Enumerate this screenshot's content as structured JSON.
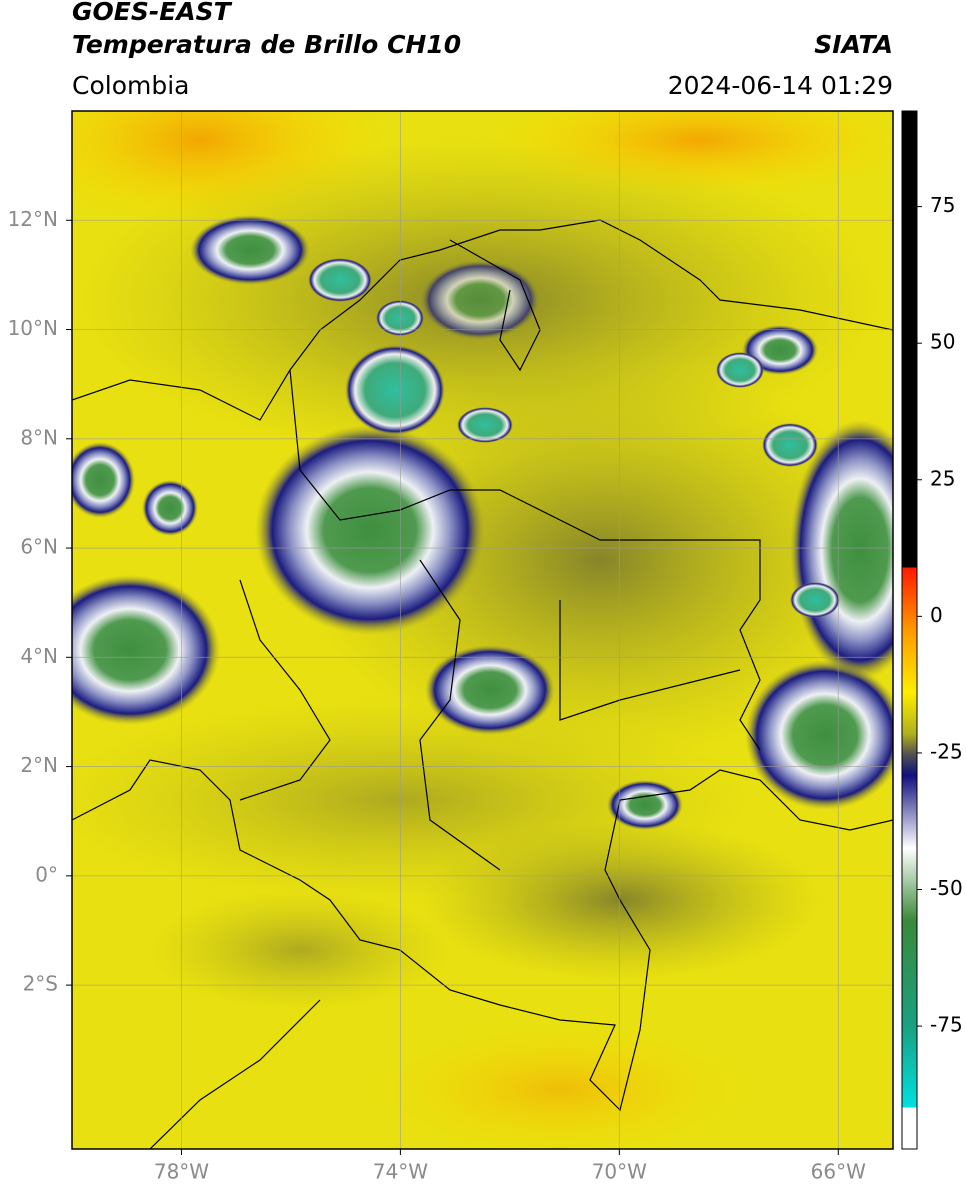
{
  "header": {
    "title": "GOES-EAST",
    "subtitle": "Temperatura de Brillo CH10",
    "source": "SIATA",
    "region": "Colombia",
    "datetime": "2024-06-14 01:29"
  },
  "map": {
    "lon_lim": [
      -80,
      -65
    ],
    "lat_lim": [
      14,
      -5
    ],
    "lon_ticks": [
      {
        "value": -78,
        "label": "78°W"
      },
      {
        "value": -74,
        "label": "74°W"
      },
      {
        "value": -70,
        "label": "70°W"
      },
      {
        "value": -66,
        "label": "66°W"
      }
    ],
    "lat_ticks": [
      {
        "value": 12,
        "label": "12°N"
      },
      {
        "value": 10,
        "label": "10°N"
      },
      {
        "value": 8,
        "label": "8°N"
      },
      {
        "value": 6,
        "label": "6°N"
      },
      {
        "value": 4,
        "label": "4°N"
      },
      {
        "value": 2,
        "label": "2°N"
      },
      {
        "value": 0,
        "label": "0°"
      },
      {
        "value": -2,
        "label": "2°S"
      }
    ],
    "grid": true
  },
  "colorbar": {
    "lim": [
      -97.5,
      92.5
    ],
    "ticks": [
      75,
      50,
      25,
      0,
      -25,
      -50,
      -75
    ]
  }
}
